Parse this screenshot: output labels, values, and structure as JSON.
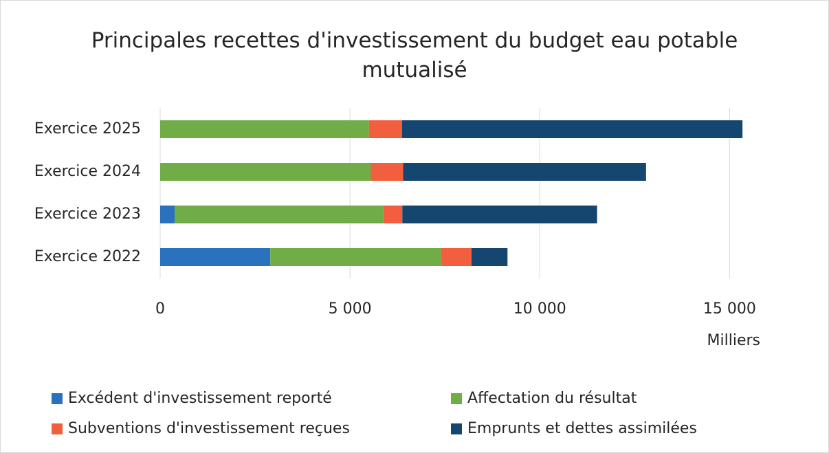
{
  "chart_data": {
    "type": "stacked_barh",
    "title": "Principales recettes d'investissement du budget eau potable mutualisé",
    "categories": [
      "Exercice 2022",
      "Exercice 2023",
      "Exercice 2024",
      "Exercice 2025"
    ],
    "series": [
      {
        "name": "Excédent d'investissement reporté",
        "color": "#2a72bd",
        "values": [
          2900,
          380,
          0,
          0
        ]
      },
      {
        "name": "Affectation du résultat",
        "color": "#70ad47",
        "values": [
          4500,
          5500,
          5550,
          5500
        ]
      },
      {
        "name": "Subventions d'investissement reçues",
        "color": "#f25f3f",
        "values": [
          800,
          500,
          850,
          870
        ]
      },
      {
        "name": "Emprunts et dettes assimilées",
        "color": "#15466f",
        "values": [
          950,
          5130,
          6400,
          8970
        ]
      }
    ],
    "xlim": [
      0,
      15700
    ],
    "xticks": [
      0,
      {
        "value": 5000,
        "label": "5 000"
      },
      {
        "value": 10000,
        "label": "10 000"
      },
      {
        "value": 15000,
        "label": "15 000"
      }
    ],
    "xlabel": "Milliers",
    "grid": true,
    "legend": "bottom"
  }
}
